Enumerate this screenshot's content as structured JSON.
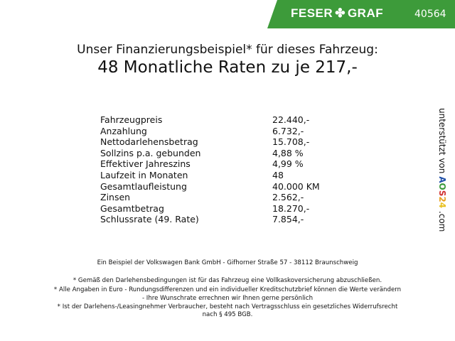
{
  "header": {
    "brand": "FESER",
    "brand2": "GRAF",
    "clover_icon": "clover-icon",
    "number": "40564",
    "color": "#3d9b3a"
  },
  "title": {
    "line1": "Unser Finanzierungsbeispiel* für dieses Fahrzeug:",
    "line2": "48 Monatliche Raten zu je 217,-"
  },
  "rows": [
    {
      "label": "Fahrzeugpreis",
      "value": "22.440,-"
    },
    {
      "label": "Anzahlung",
      "value": "6.732,-"
    },
    {
      "label": "Nettodarlehensbetrag",
      "value": "15.708,-"
    },
    {
      "label": "Sollzins p.a. gebunden",
      "value": "4,88 %"
    },
    {
      "label": "Effektiver Jahreszins",
      "value": "4,99 %"
    },
    {
      "label": "Laufzeit in Monaten",
      "value": "48"
    },
    {
      "label": "Gesamtlaufleistung",
      "value": "40.000 KM"
    },
    {
      "label": "Zinsen",
      "value": "2.562,-"
    },
    {
      "label": "Gesamtbetrag",
      "value": "18.270,-"
    },
    {
      "label": "Schlussrate (49. Rate)",
      "value": "7.854,-"
    }
  ],
  "side": {
    "text": "unterstützt von",
    "logo": [
      "A",
      "O",
      "S",
      "2",
      "4"
    ],
    "suffix": ".com"
  },
  "footer": {
    "bank": "Ein Beispiel der Volkswagen Bank GmbH - Gifhorner Straße 57 - 38112 Braunschweig",
    "note1": "* Gemäß den Darlehensbedingungen ist für das Fahrzeug eine Vollkaskoversicherung abzuschließen.",
    "note2a": "* Alle Angaben in Euro - Rundungsdifferenzen und ein individueller Kreditschutzbrief können die Werte verändern",
    "note2b": "- Ihre Wunschrate errechnen wir Ihnen gerne persönlich",
    "note3a": "* Ist der Darlehens-/Leasingnehmer Verbraucher, besteht nach Vertragsschluss ein gesetzliches Widerrufsrecht",
    "note3b": "nach § 495 BGB."
  }
}
